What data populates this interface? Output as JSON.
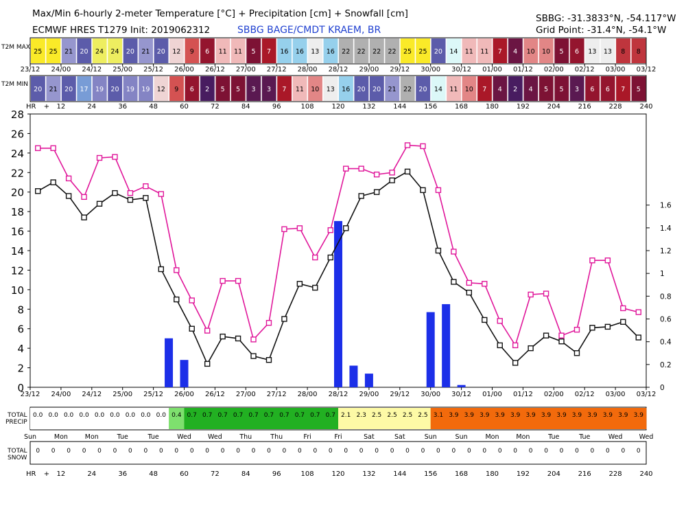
{
  "header": {
    "title": "Max/Min 6-hourly 2-meter Temperature [°C] + Precipitation [cm] + Snowfall [cm]",
    "model_line": "ECMWF HRES T1279 Init: 2019062312",
    "station_name": "SBBG BAGE/CMDT KRAEM, BR",
    "station_coords": "SBBG: -31.3833°N, -54.117°W",
    "grid_point": "Grid Point: -31.4°N, -54.1°W"
  },
  "strips": {
    "t2m_max_label": "T2M MAX",
    "t2m_min_label": "T2M MIN",
    "hr_label": "HR",
    "plus": "+",
    "precip_label_1": "TOTAL",
    "precip_label_2": "PRECIP",
    "snow_label_1": "TOTAL",
    "snow_label_2": "SNOW"
  },
  "colors": {
    "max_line": "#e0169a",
    "min_line": "#111111",
    "bars": "#1c2fe8",
    "precip_white": "#ffffff",
    "precip_lightgreen": "#7ee06e",
    "precip_green": "#22b022",
    "precip_yellow": "#fdfaa6",
    "precip_orange": "#f26a0c"
  },
  "chart_data": {
    "type": "line",
    "title": "Max/Min 6-hourly 2-meter Temperature [°C] + Precipitation [cm] + Snowfall [cm]",
    "y_left_range": [
      0,
      28
    ],
    "y_left_ticks": [
      0,
      2,
      4,
      6,
      8,
      10,
      12,
      14,
      16,
      18,
      20,
      22,
      24,
      26,
      28
    ],
    "y_right_range": [
      0,
      2.4
    ],
    "y_right_ticks": [
      "0",
      "0.2",
      "0.4",
      "0.6",
      "0.8",
      "1",
      "1.2",
      "1.4",
      "1.6"
    ],
    "date_ticks": [
      "23/12",
      "24/00",
      "24/12",
      "25/00",
      "25/12",
      "26/00",
      "26/12",
      "27/00",
      "27/12",
      "28/00",
      "28/12",
      "29/00",
      "29/12",
      "30/00",
      "30/12",
      "01/00",
      "01/12",
      "02/00",
      "02/12",
      "03/00",
      "03/12"
    ],
    "hr_ticks": [
      "12",
      "24",
      "36",
      "48",
      "60",
      "72",
      "84",
      "96",
      "108",
      "120",
      "132",
      "144",
      "156",
      "168",
      "180",
      "192",
      "204",
      "216",
      "228",
      "240"
    ],
    "day_names": [
      "Sun",
      "Mon",
      "Mon",
      "Tue",
      "Tue",
      "Wed",
      "Wed",
      "Thu",
      "Thu",
      "Fri",
      "Fri",
      "Sat",
      "Sat",
      "Sun",
      "Sun",
      "Mon",
      "Mon",
      "Tue",
      "Tue",
      "Wed",
      "Wed"
    ],
    "t2m_max_cells": [
      25,
      25,
      21,
      20,
      24,
      24,
      20,
      21,
      20,
      12,
      9,
      6,
      11,
      11,
      5,
      7,
      16,
      16,
      13,
      16,
      22,
      22,
      22,
      22,
      25,
      25,
      20,
      14,
      11,
      11,
      7,
      4,
      10,
      10,
      5,
      6,
      13,
      13,
      8,
      8
    ],
    "t2m_min_cells": [
      20,
      21,
      20,
      17,
      19,
      20,
      19,
      19,
      12,
      9,
      6,
      2,
      5,
      5,
      3,
      3,
      7,
      11,
      10,
      13,
      16,
      20,
      20,
      21,
      22,
      20,
      14,
      11,
      10,
      7,
      4,
      2,
      4,
      5,
      5,
      3,
      6,
      6,
      7,
      5
    ],
    "series": [
      {
        "name": "T2M Max",
        "hours": [
          3,
          9,
          15,
          21,
          27,
          33,
          39,
          45,
          51,
          57,
          63,
          69,
          75,
          81,
          87,
          93,
          99,
          105,
          111,
          117,
          123,
          129,
          135,
          141,
          147,
          153,
          159,
          165,
          171,
          177,
          183,
          189,
          195,
          201,
          207,
          213,
          219,
          225,
          231,
          237
        ],
        "values": [
          24.5,
          24.5,
          21.4,
          19.5,
          23.5,
          23.6,
          19.9,
          20.6,
          19.8,
          12.0,
          8.9,
          5.8,
          10.9,
          10.9,
          4.9,
          6.6,
          16.2,
          16.3,
          13.3,
          16.1,
          22.4,
          22.4,
          21.8,
          22.0,
          24.8,
          24.7,
          20.2,
          13.9,
          10.7,
          10.6,
          6.8,
          4.3,
          9.5,
          9.6,
          5.3,
          5.9,
          13.0,
          13.0,
          8.1,
          7.7
        ]
      },
      {
        "name": "T2M Min",
        "hours": [
          3,
          9,
          15,
          21,
          27,
          33,
          39,
          45,
          51,
          57,
          63,
          69,
          75,
          81,
          87,
          93,
          99,
          105,
          111,
          117,
          123,
          129,
          135,
          141,
          147,
          153,
          159,
          165,
          171,
          177,
          183,
          189,
          195,
          201,
          207,
          213,
          219,
          225,
          231,
          237
        ],
        "values": [
          20.1,
          21.0,
          19.6,
          17.4,
          18.8,
          19.9,
          19.2,
          19.4,
          12.1,
          9.0,
          6.0,
          2.4,
          5.2,
          5.0,
          3.2,
          2.8,
          7.0,
          10.6,
          10.2,
          13.3,
          16.3,
          19.6,
          20.0,
          21.2,
          22.1,
          20.2,
          14.0,
          10.8,
          9.7,
          6.9,
          4.3,
          2.5,
          4.0,
          5.3,
          4.7,
          3.5,
          6.1,
          6.2,
          6.7,
          5.1
        ]
      },
      {
        "name": "Precipitation [cm]",
        "axis": "right",
        "hours": [
          54,
          60,
          120,
          126,
          132,
          156,
          162,
          168
        ],
        "values": [
          0.43,
          0.24,
          1.46,
          0.19,
          0.12,
          0.66,
          0.73,
          0.02
        ]
      }
    ],
    "total_precip": [
      "0.0",
      "0.0",
      "0.0",
      "0.0",
      "0.0",
      "0.0",
      "0.0",
      "0.0",
      "0.0",
      "0.4",
      "0.7",
      "0.7",
      "0.7",
      "0.7",
      "0.7",
      "0.7",
      "0.7",
      "0.7",
      "0.7",
      "0.7",
      "2.1",
      "2.3",
      "2.5",
      "2.5",
      "2.5",
      "2.5",
      "3.1",
      "3.9",
      "3.9",
      "3.9",
      "3.9",
      "3.9",
      "3.9",
      "3.9",
      "3.9",
      "3.9",
      "3.9",
      "3.9",
      "3.9",
      "3.9"
    ],
    "total_snow": [
      "0",
      "0",
      "0",
      "0",
      "0",
      "0",
      "0",
      "0",
      "0",
      "0",
      "0",
      "0",
      "0",
      "0",
      "0",
      "0",
      "0",
      "0",
      "0",
      "0",
      "0",
      "0",
      "0",
      "0",
      "0",
      "0",
      "0",
      "0",
      "0",
      "0",
      "0",
      "0",
      "0",
      "0",
      "0",
      "0",
      "0",
      "0",
      "0",
      "0"
    ]
  }
}
